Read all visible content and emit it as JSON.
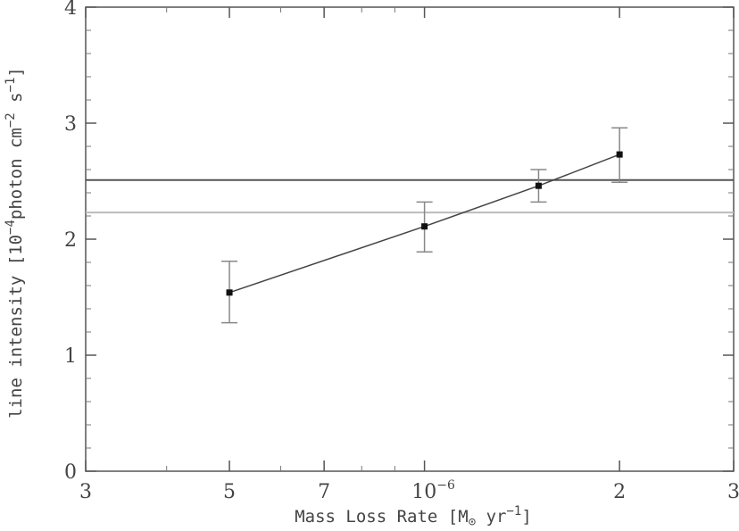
{
  "chart_data": {
    "type": "scatter",
    "xscale": "log",
    "xlim": [
      3e-07,
      3e-06
    ],
    "ylim": [
      0,
      4
    ],
    "xticks_major": [
      {
        "value": 3e-07,
        "label": "3"
      },
      {
        "value": 5e-07,
        "label": "5"
      },
      {
        "value": 7e-07,
        "label": "7"
      },
      {
        "value": 1e-06,
        "label": "10",
        "exponent": "−6"
      },
      {
        "value": 2e-06,
        "label": "2"
      },
      {
        "value": 3e-06,
        "label": "3"
      }
    ],
    "xticks_minor": [
      4e-07,
      6e-07,
      8e-07,
      9e-07
    ],
    "yticks": [
      {
        "value": 0,
        "label": "0"
      },
      {
        "value": 1,
        "label": "1"
      },
      {
        "value": 2,
        "label": "2"
      },
      {
        "value": 3,
        "label": "3"
      },
      {
        "value": 4,
        "label": "4"
      }
    ],
    "xlabel": {
      "pre": "Mass Loss Rate [M",
      "sub": "⊙",
      "mid": " yr",
      "sup": "−1",
      "post": "]"
    },
    "ylabel": {
      "pre": "line intensity [10",
      "sup1": "−4",
      "mid1": "photon cm",
      "sup2": "−2",
      "mid2": " s",
      "sup3": "−1",
      "post": "]"
    },
    "series": [
      {
        "x": [
          5e-07,
          1e-06,
          1.5e-06,
          2e-06
        ],
        "y": [
          1.54,
          2.11,
          2.46,
          2.73
        ],
        "yerr_low": [
          1.28,
          1.89,
          2.32,
          2.49
        ],
        "yerr_high": [
          1.81,
          2.32,
          2.6,
          2.96
        ],
        "color": "#111111"
      }
    ],
    "hlines": [
      {
        "y": 2.51,
        "color": "#555555"
      },
      {
        "y": 2.23,
        "color": "#bbbbbb"
      }
    ],
    "grid": false,
    "legend": "none"
  }
}
